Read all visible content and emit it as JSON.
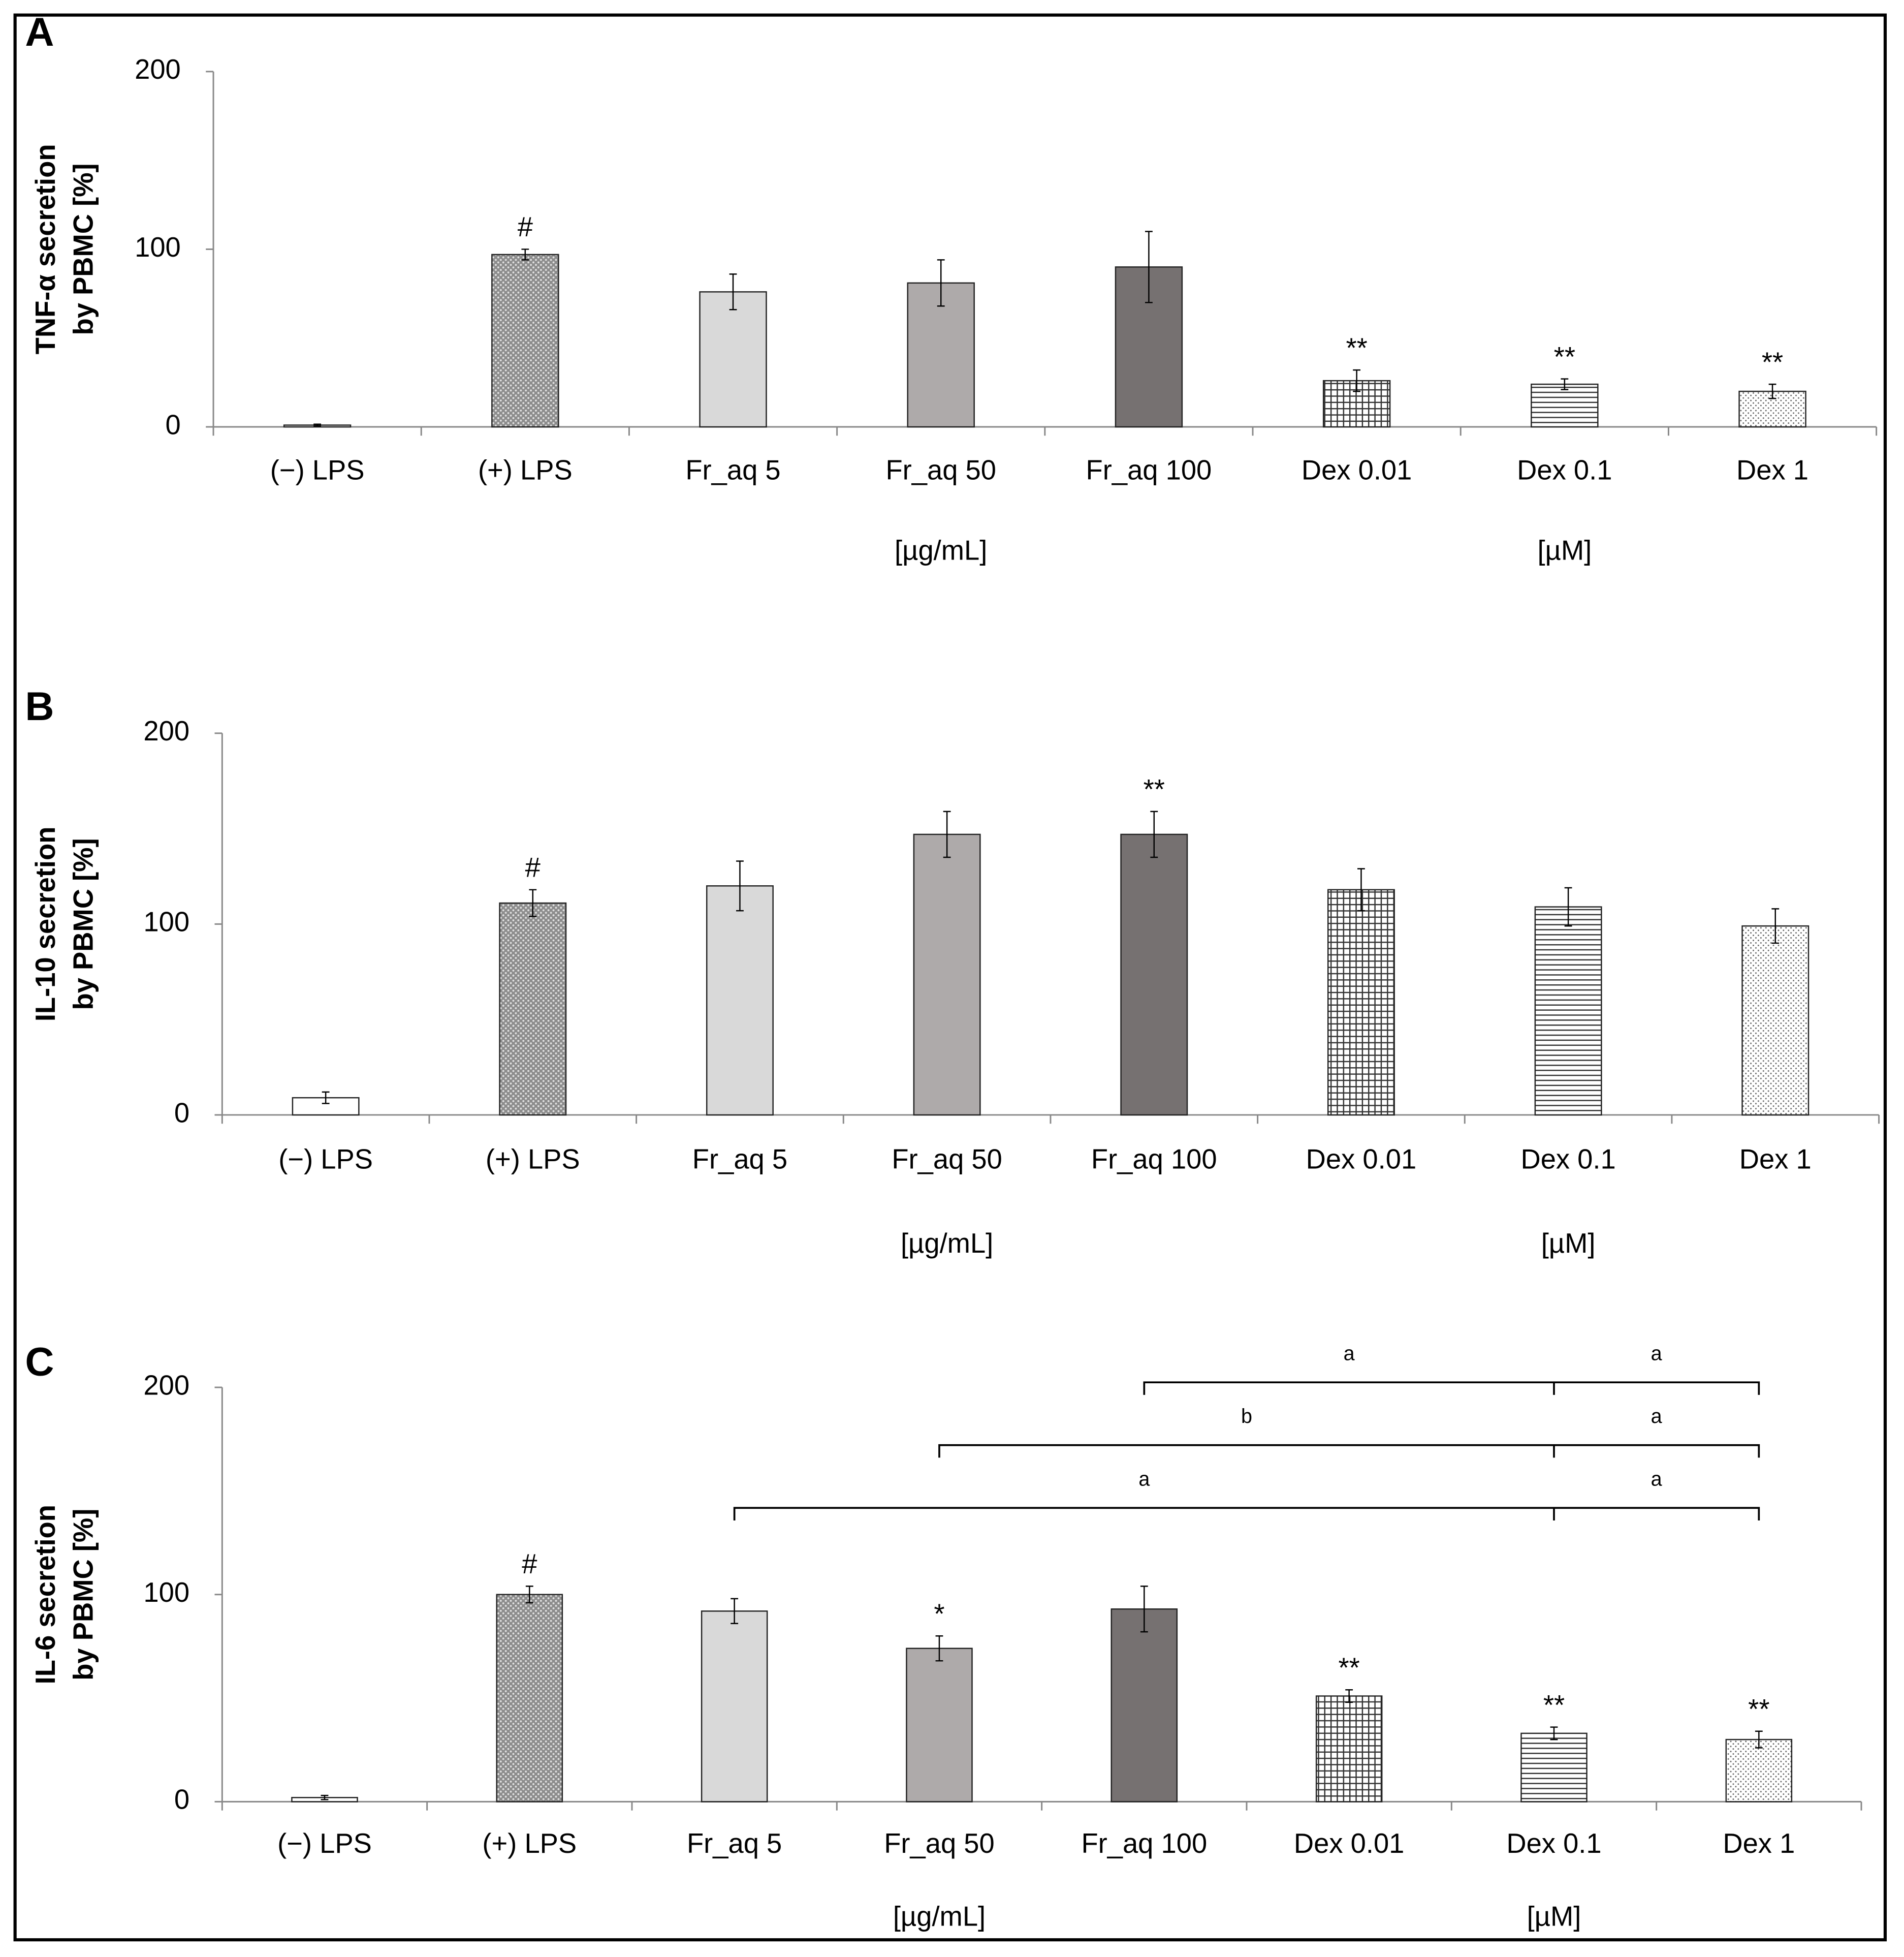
{
  "chart_data": [
    {
      "type": "bar",
      "panel": "A",
      "ylabel": [
        "TNF-α secretion",
        "by PBMC [%]"
      ],
      "categories": [
        "(−) LPS",
        "(+) LPS",
        "Fr_aq 5",
        "Fr_aq 50",
        "Fr_aq 100",
        "Dex 0.01",
        "Dex 0.1",
        "Dex 1"
      ],
      "values": [
        1,
        97,
        76,
        81,
        90,
        26,
        24,
        20
      ],
      "errors": [
        0.5,
        3,
        10,
        13,
        20,
        6,
        3,
        4
      ],
      "colors": [
        "#ffffff",
        "#8c8c8c",
        "#d9d9d9",
        "#aeaaaa",
        "#767171",
        "#ffffff",
        "#ffffff",
        "#ffffff"
      ],
      "patterns": [
        null,
        "dots",
        null,
        null,
        null,
        "grid",
        "hlines",
        "fine-dots"
      ],
      "ylim": [
        0,
        200
      ],
      "yticks": [
        0,
        100,
        200
      ],
      "annotations": [
        {
          "index": 1,
          "label": "#"
        },
        {
          "index": 5,
          "label": "**"
        },
        {
          "index": 6,
          "label": "**"
        },
        {
          "index": 7,
          "label": "**"
        }
      ],
      "units": [
        {
          "label": "[µg/mL]",
          "categories": [
            2,
            4
          ]
        },
        {
          "label": "[µM]",
          "categories": [
            5,
            7
          ]
        }
      ]
    },
    {
      "type": "bar",
      "panel": "B",
      "ylabel": [
        "IL-10 secretion",
        "by PBMC [%]"
      ],
      "categories": [
        "(−) LPS",
        "(+) LPS",
        "Fr_aq 5",
        "Fr_aq 50",
        "Fr_aq 100",
        "Dex 0.01",
        "Dex 0.1",
        "Dex 1"
      ],
      "values": [
        9,
        111,
        120,
        147,
        147,
        118,
        109,
        99
      ],
      "errors": [
        3,
        7,
        13,
        12,
        12,
        11,
        10,
        9
      ],
      "colors": [
        "#ffffff",
        "#8c8c8c",
        "#d9d9d9",
        "#aeaaaa",
        "#767171",
        "#ffffff",
        "#ffffff",
        "#ffffff"
      ],
      "patterns": [
        null,
        "dots",
        null,
        null,
        null,
        "grid",
        "hlines",
        "fine-dots"
      ],
      "ylim": [
        0,
        200
      ],
      "yticks": [
        0,
        100,
        200
      ],
      "annotations": [
        {
          "index": 1,
          "label": "#"
        },
        {
          "index": 4,
          "label": "**"
        }
      ],
      "units": [
        {
          "label": "[µg/mL]",
          "categories": [
            2,
            4
          ]
        },
        {
          "label": "[µM]",
          "categories": [
            5,
            7
          ]
        }
      ]
    },
    {
      "type": "bar",
      "panel": "C",
      "ylabel": [
        "IL-6 secretion",
        "by PBMC [%]"
      ],
      "categories": [
        "(−) LPS",
        "(+) LPS",
        "Fr_aq 5",
        "Fr_aq 50",
        "Fr_aq 100",
        "Dex 0.01",
        "Dex 0.1",
        "Dex 1"
      ],
      "values": [
        2,
        100,
        92,
        74,
        93,
        51,
        33,
        30
      ],
      "errors": [
        1,
        4,
        6,
        6,
        11,
        3,
        3,
        4
      ],
      "colors": [
        "#ffffff",
        "#8c8c8c",
        "#d9d9d9",
        "#aeaaaa",
        "#767171",
        "#ffffff",
        "#ffffff",
        "#ffffff"
      ],
      "patterns": [
        null,
        "dots",
        null,
        null,
        null,
        "grid",
        "hlines",
        "fine-dots"
      ],
      "ylim": [
        0,
        200
      ],
      "yticks": [
        0,
        100,
        200
      ],
      "annotations": [
        {
          "index": 1,
          "label": "#"
        },
        {
          "index": 3,
          "label": "*"
        },
        {
          "index": 5,
          "label": "**"
        },
        {
          "index": 6,
          "label": "**"
        },
        {
          "index": 7,
          "label": "**"
        }
      ],
      "units": [
        {
          "label": "[µg/mL]",
          "categories": [
            2,
            4
          ]
        },
        {
          "label": "[µM]",
          "categories": [
            5,
            7
          ]
        }
      ],
      "brackets": [
        {
          "from": 4,
          "mid": 6,
          "to": 7,
          "labels": [
            "a",
            "a"
          ]
        },
        {
          "from": 3,
          "mid": 6,
          "to": 7,
          "labels": [
            "b",
            "a"
          ]
        },
        {
          "from": 2,
          "mid": 6,
          "to": 7,
          "labels": [
            "a",
            "a"
          ]
        }
      ]
    }
  ]
}
